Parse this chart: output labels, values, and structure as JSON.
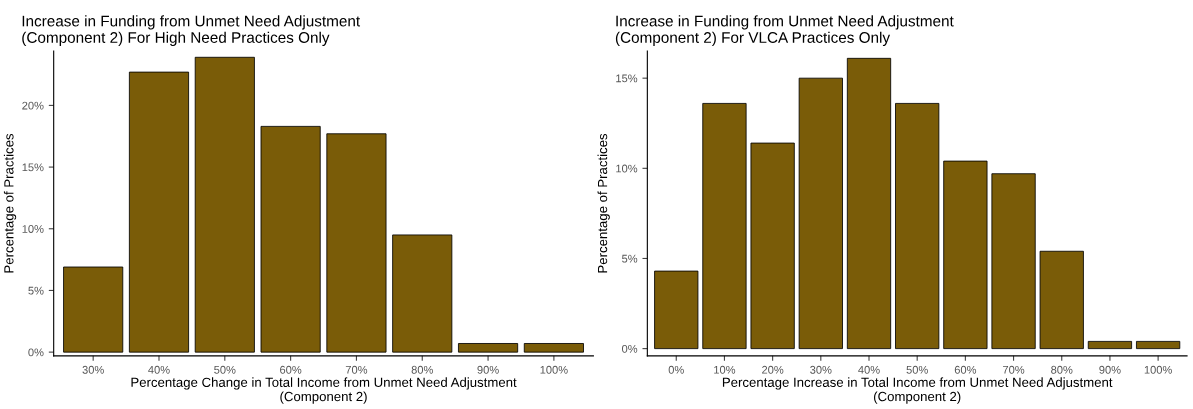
{
  "chart_data": [
    {
      "type": "bar",
      "title": "Increase in Funding from Unmet Need Adjustment\n(Component 2) For High Need Practices Only",
      "xlabel": "Percentage Change in Total Income from Unmet Need Adjustment\n(Component 2)",
      "ylabel": "Percentage of Practices",
      "categories": [
        "30%",
        "40%",
        "50%",
        "60%",
        "70%",
        "80%",
        "90%",
        "100%"
      ],
      "values": [
        6.9,
        22.7,
        23.9,
        18.3,
        17.7,
        9.5,
        0.7,
        0.7
      ],
      "color": "#7a5c08",
      "ylim": [
        -0.3,
        24.4
      ],
      "yticks": [
        {
          "value": 0,
          "label": "0%"
        },
        {
          "value": 5,
          "label": "5%"
        },
        {
          "value": 10,
          "label": "10%"
        },
        {
          "value": 15,
          "label": "15%"
        },
        {
          "value": 20,
          "label": "20%"
        }
      ],
      "grid": false
    },
    {
      "type": "bar",
      "title": "Increase in Funding from Unmet Need Adjustment\n(Component 2) For VLCA Practices Only",
      "xlabel": "Percentage Increase in Total Income from Unmet Need Adjustment\n(Component 2)",
      "ylabel": "Percentage of Practices",
      "categories": [
        "0%",
        "10%",
        "20%",
        "30%",
        "40%",
        "50%",
        "60%",
        "70%",
        "80%",
        "90%",
        "100%"
      ],
      "values": [
        4.3,
        13.6,
        11.4,
        15.0,
        16.1,
        13.6,
        10.4,
        9.7,
        5.4,
        0.4,
        0.4
      ],
      "color": "#7a5c08",
      "ylim": [
        -0.4,
        16.5
      ],
      "yticks": [
        {
          "value": 0,
          "label": "0%"
        },
        {
          "value": 5,
          "label": "5%"
        },
        {
          "value": 10,
          "label": "10%"
        },
        {
          "value": 15,
          "label": "15%"
        }
      ],
      "grid": false
    }
  ]
}
